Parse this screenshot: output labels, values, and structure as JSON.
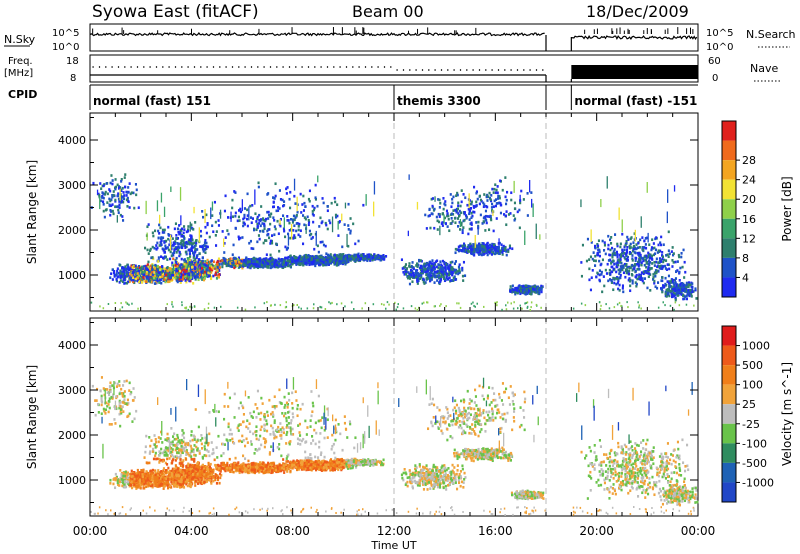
{
  "header": {
    "station": "Syowa East (fitACF)",
    "beam": "Beam 00",
    "date": "18/Dec/2009"
  },
  "panels": {
    "nsky_label": "N.Sky",
    "nsearch_label": "N.Search",
    "freq_label_line1": "Freq.",
    "freq_label_line2": "[MHz]",
    "nave_label": "Nave",
    "cpid_label": "CPID",
    "nsky_ticks": [
      "10^5",
      "10^0"
    ],
    "nsearch_ticks": [
      "10^5",
      "10^0"
    ],
    "freq_ticks": [
      "18",
      "8"
    ],
    "nave_ticks": [
      "60",
      "0"
    ]
  },
  "cpid_segments": [
    {
      "label": "normal (fast) 151",
      "start_hr": 0,
      "end_hr": 12
    },
    {
      "label": "themis 3300",
      "start_hr": 12,
      "end_hr": 18
    },
    {
      "label": "normal (fast) -151",
      "start_hr": 19,
      "end_hr": 24
    }
  ],
  "colors": {
    "power_scale": [
      "#1f2bf0",
      "#1e52c8",
      "#2e7f6d",
      "#3aa36a",
      "#8fd04a",
      "#f2e234",
      "#f3a521",
      "#ef6a1c",
      "#e0201c"
    ],
    "velocity_scale": [
      "#2147c7",
      "#1e62b5",
      "#2f8c5f",
      "#69c34a",
      "#bdbdbd",
      "#f1a33a",
      "#f07f1a",
      "#ee5a1a",
      "#e01c1c"
    ]
  },
  "chart_data": [
    {
      "type": "heatmap",
      "name": "power",
      "ylabel": "Slant Range [km]",
      "xlabel": "Time UT",
      "xlim": [
        0,
        24
      ],
      "ylim": [
        200,
        4600
      ],
      "xticks": [
        "00:00",
        "04:00",
        "08:00",
        "12:00",
        "16:00",
        "20:00",
        "00:00"
      ],
      "yticks": [
        1000,
        2000,
        3000,
        4000
      ],
      "colorbar": {
        "label": "Power [dB]",
        "ticks": [
          4,
          8,
          12,
          16,
          20,
          24,
          28
        ]
      },
      "data_gap_hr": [
        18,
        19
      ],
      "mode_change_hr": [
        12,
        18
      ]
    },
    {
      "type": "heatmap",
      "name": "velocity",
      "ylabel": "Slant Range [km]",
      "xlabel": "Time UT",
      "xlim": [
        0,
        24
      ],
      "ylim": [
        200,
        4600
      ],
      "xticks": [
        "00:00",
        "04:00",
        "08:00",
        "12:00",
        "16:00",
        "20:00",
        "00:00"
      ],
      "yticks": [
        1000,
        2000,
        3000,
        4000
      ],
      "colorbar": {
        "label": "Velocity [m s^-1]",
        "ticks": [
          1000,
          500,
          100,
          25,
          -25,
          -100,
          -500,
          -1000
        ]
      },
      "data_gap_hr": [
        18,
        19
      ],
      "mode_change_hr": [
        12,
        18
      ]
    }
  ]
}
